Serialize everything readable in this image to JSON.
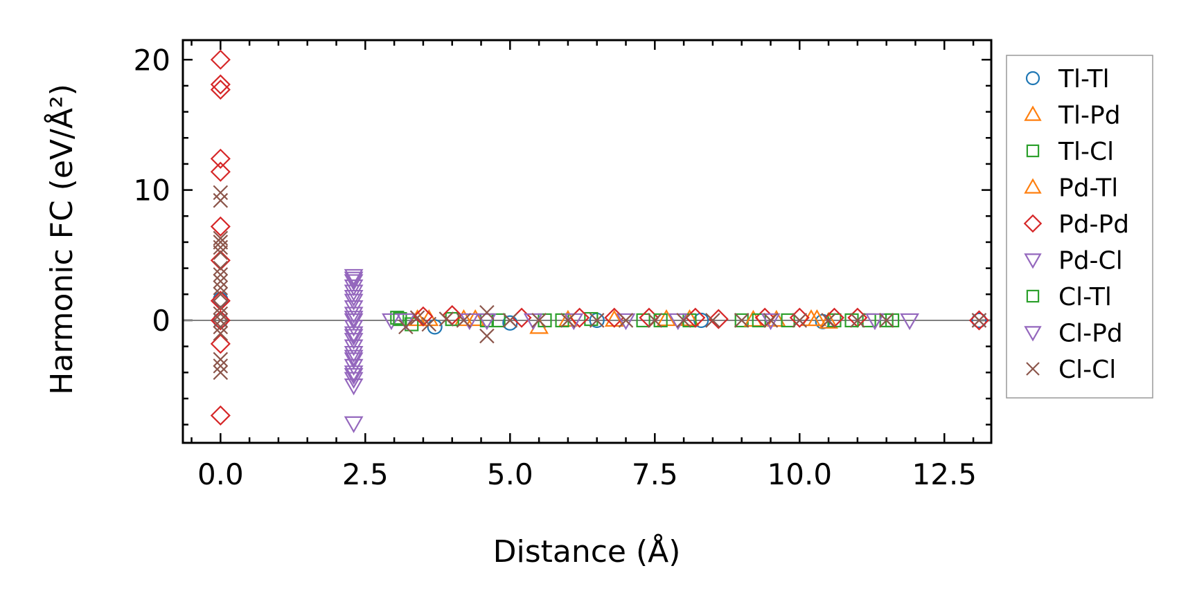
{
  "chart_data": {
    "type": "scatter",
    "title": "",
    "xlabel": "Distance (Å)",
    "ylabel": "Harmonic FC (eV/Å²)",
    "xlim": [
      -0.65,
      13.31
    ],
    "ylim": [
      -9.4,
      21.5
    ],
    "xticks": [
      0.0,
      2.5,
      5.0,
      7.5,
      10.0,
      12.5
    ],
    "xtick_labels": [
      "0.0",
      "2.5",
      "5.0",
      "7.5",
      "10.0",
      "12.5"
    ],
    "yticks": [
      0,
      10,
      20
    ],
    "ytick_labels": [
      "0",
      "10",
      "20"
    ],
    "grid": false,
    "reference_line_y": 0,
    "legend_placement": "outside-right",
    "series": [
      {
        "name": "Tl-Tl",
        "marker": "circle",
        "color": "#1f77b4",
        "x": [
          0.0,
          0.0,
          3.7,
          5.0,
          6.5,
          8.3,
          10.4,
          13.1
        ],
        "y": [
          1.6,
          0.0,
          -0.5,
          -0.2,
          0.0,
          0.0,
          -0.1,
          0.0
        ]
      },
      {
        "name": "Tl-Pd",
        "marker": "triangle-up",
        "color": "#ff7f0e",
        "x": [
          3.4,
          4.2,
          5.5,
          6.8,
          8.1,
          9.6,
          10.3,
          10.5
        ],
        "y": [
          0.1,
          0.1,
          -0.5,
          0.05,
          0.1,
          0.05,
          0.1,
          -0.1
        ]
      },
      {
        "name": "Tl-Cl",
        "marker": "square",
        "color": "#2ca02c",
        "x": [
          3.05,
          3.3,
          4.0,
          4.8,
          5.6,
          6.4,
          7.3,
          8.1,
          9.0,
          9.8,
          10.6,
          11.2,
          11.6
        ],
        "y": [
          0.2,
          -0.3,
          0.1,
          0.0,
          0.0,
          0.1,
          0.0,
          0.0,
          0.0,
          0.0,
          0.0,
          0.0,
          0.0
        ]
      },
      {
        "name": "Pd-Tl",
        "marker": "triangle-up",
        "color": "#ff7f0e",
        "x": [
          3.6,
          4.4,
          6.0,
          7.7,
          9.2,
          10.2
        ],
        "y": [
          0.1,
          0.1,
          0.05,
          0.1,
          0.05,
          0.1
        ]
      },
      {
        "name": "Pd-Pd",
        "marker": "diamond",
        "color": "#d62728",
        "x": [
          0.0,
          0.0,
          0.0,
          0.0,
          0.0,
          0.0,
          0.0,
          0.0,
          0.0,
          0.0,
          0.0,
          3.5,
          4.0,
          5.2,
          6.2,
          6.8,
          7.4,
          8.2,
          8.6,
          9.4,
          10.0,
          10.6,
          11.0,
          13.1
        ],
        "y": [
          20.0,
          18.1,
          17.7,
          12.4,
          11.4,
          7.2,
          4.6,
          1.5,
          0.0,
          -1.8,
          -7.3,
          0.3,
          0.4,
          0.2,
          0.2,
          0.2,
          0.2,
          0.2,
          0.1,
          0.2,
          0.2,
          0.2,
          0.2,
          0.0
        ]
      },
      {
        "name": "Pd-Cl",
        "marker": "triangle-down",
        "color": "#9467bd",
        "x": [
          2.3,
          2.3,
          2.3,
          2.3,
          2.3,
          2.3,
          2.3,
          2.3,
          2.3,
          2.3,
          2.3,
          2.3,
          2.3,
          2.3,
          2.3,
          2.3,
          2.3,
          2.3,
          2.3,
          2.95,
          4.3,
          7.0,
          11.9
        ],
        "y": [
          3.4,
          3.0,
          2.6,
          2.2,
          1.5,
          1.0,
          0.5,
          0.0,
          -0.5,
          -1.0,
          -1.5,
          -2.0,
          -2.5,
          -3.0,
          -3.5,
          -4.0,
          -4.5,
          -5.0,
          -7.9,
          0.0,
          0.0,
          0.0,
          0.0
        ]
      },
      {
        "name": "Cl-Tl",
        "marker": "square",
        "color": "#2ca02c",
        "x": [
          3.1,
          4.6,
          5.9,
          7.6,
          9.3,
          10.9,
          11.5
        ],
        "y": [
          0.1,
          0.0,
          0.0,
          0.0,
          0.0,
          0.0,
          0.0
        ]
      },
      {
        "name": "Cl-Pd",
        "marker": "triangle-down",
        "color": "#9467bd",
        "x": [
          2.3,
          2.3,
          2.3,
          2.3,
          2.3,
          2.3,
          3.2,
          4.6,
          5.4,
          6.1,
          7.9,
          9.5,
          11.3
        ],
        "y": [
          3.2,
          1.8,
          0.2,
          -1.2,
          -2.8,
          -4.2,
          0.0,
          0.0,
          0.0,
          0.0,
          0.0,
          0.0,
          0.0
        ]
      },
      {
        "name": "Cl-Cl",
        "marker": "x",
        "color": "#8c564b",
        "x": [
          0.0,
          0.0,
          0.0,
          0.0,
          0.0,
          0.0,
          0.0,
          0.0,
          0.0,
          0.0,
          0.0,
          0.0,
          0.0,
          0.0,
          0.0,
          0.0,
          0.0,
          0.0,
          0.0,
          3.2,
          3.4,
          3.6,
          3.9,
          4.2,
          4.6,
          4.6,
          5.0,
          5.5,
          6.0,
          6.5,
          7.0,
          7.5,
          8.0,
          8.5,
          9.0,
          9.5,
          10.0,
          10.5,
          11.0,
          11.5,
          13.1
        ],
        "y": [
          9.8,
          9.2,
          6.3,
          6.0,
          5.6,
          5.2,
          4.0,
          3.5,
          3.0,
          2.5,
          2.0,
          1.0,
          0.5,
          0.0,
          -0.5,
          -1.0,
          -3.0,
          -3.5,
          -4.0,
          -0.5,
          0.2,
          -0.3,
          0.1,
          0.0,
          0.6,
          -1.2,
          0.0,
          0.0,
          0.0,
          0.0,
          0.0,
          0.0,
          0.0,
          0.0,
          0.0,
          0.0,
          0.0,
          0.0,
          0.0,
          0.0,
          0.0
        ]
      }
    ]
  }
}
